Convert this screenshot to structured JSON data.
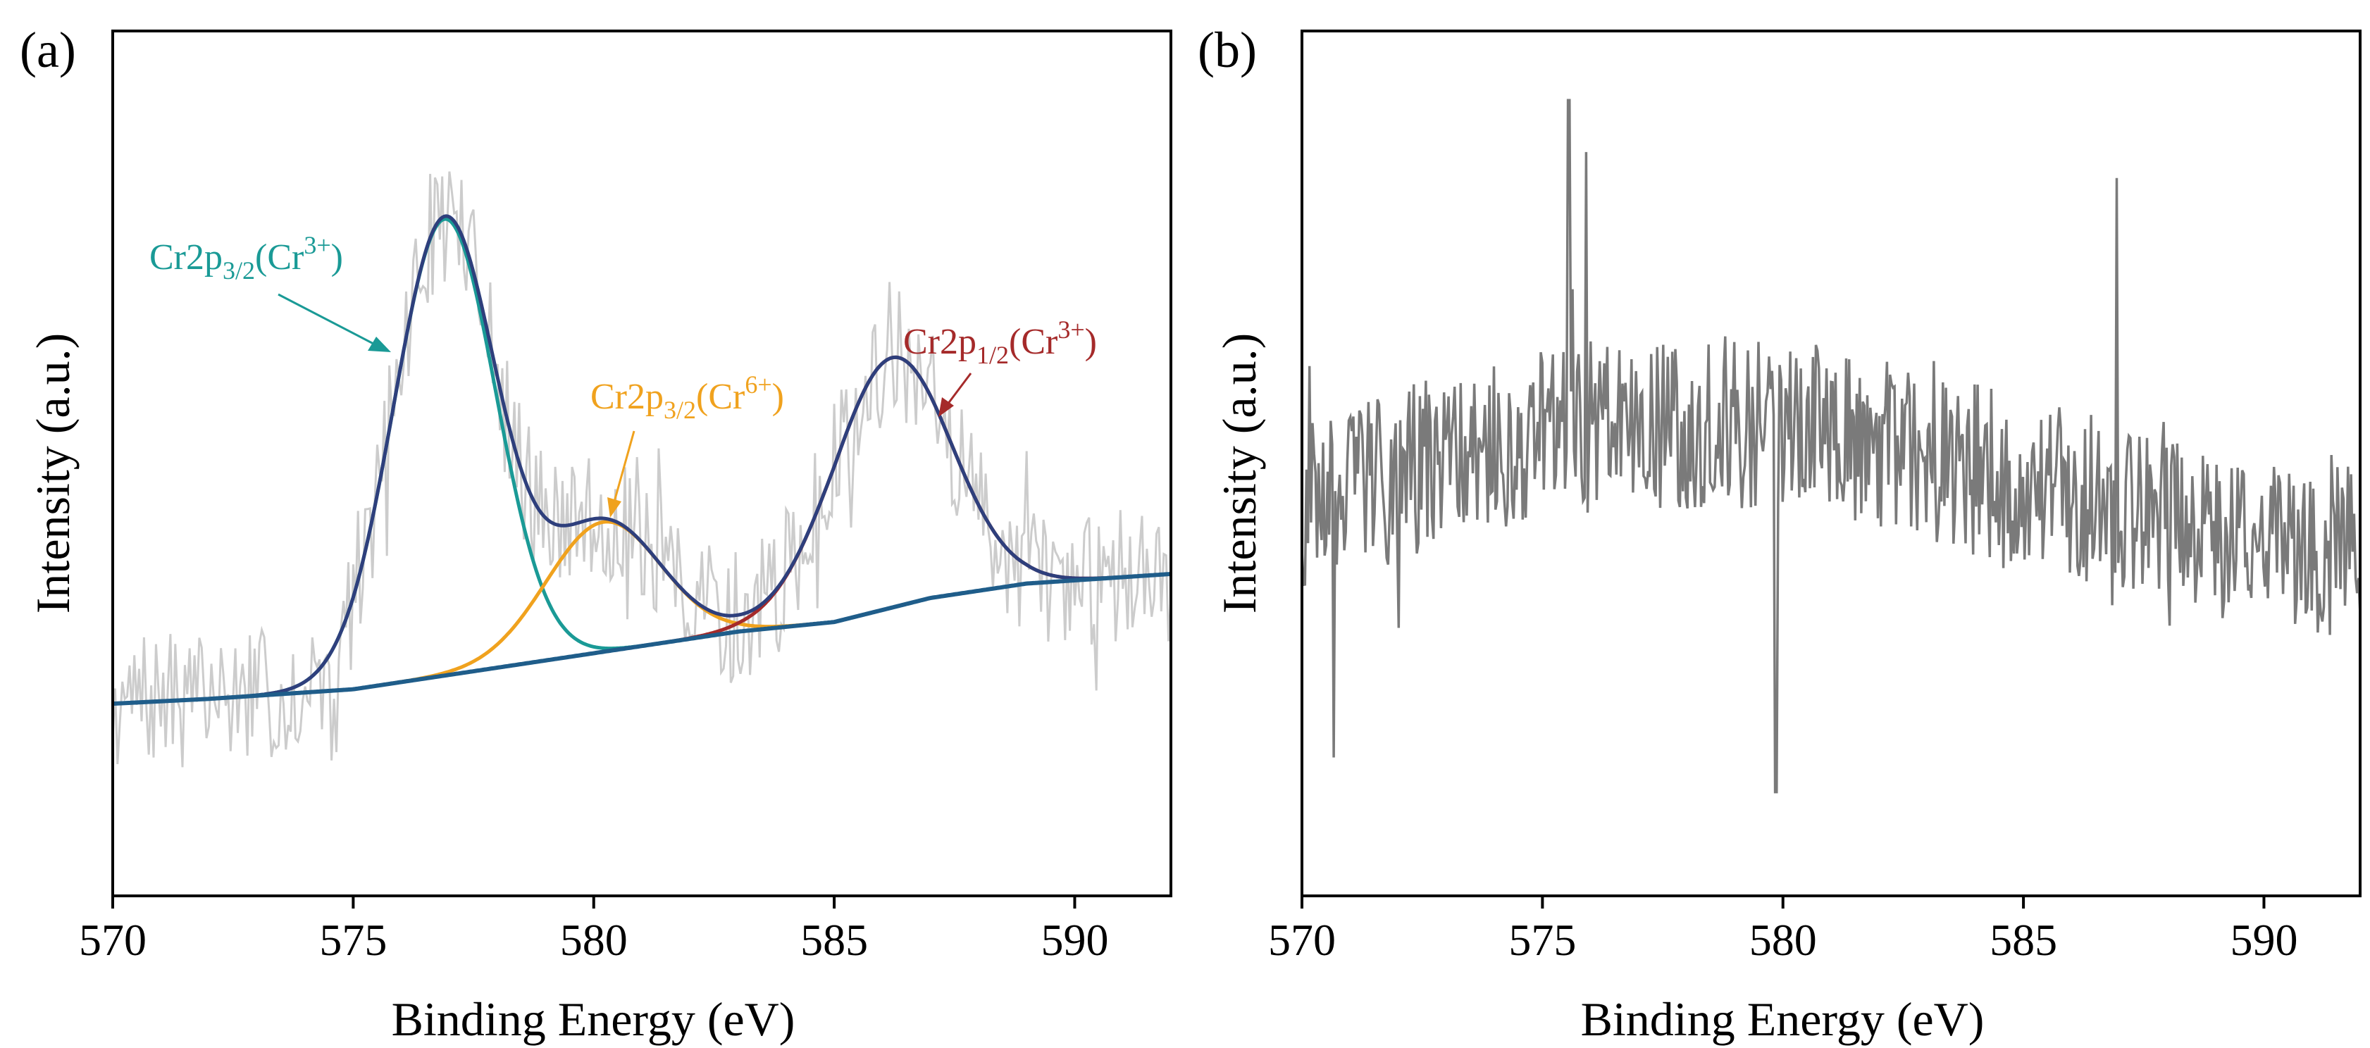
{
  "chart_data": [
    {
      "panel_label": "(a)",
      "type": "line",
      "xlabel": "Binding Energy (eV)",
      "ylabel": "Intensity (a.u.)",
      "xlim": [
        570,
        592
      ],
      "ylim": [
        -0.4,
        1.4
      ],
      "x_ticks": [
        570,
        575,
        580,
        585,
        590
      ],
      "y_ticks_shown": false,
      "colors": {
        "raw": "#cccccc",
        "envelope": "#2e3f7c",
        "cr3_2p32": "#1a9a96",
        "cr6_2p32": "#f0a21e",
        "cr3_2p12": "#a52a2a",
        "background": "#1f5d8a"
      },
      "background": {
        "x": [
          570,
          572,
          575,
          577,
          579,
          581,
          583,
          585,
          587,
          589,
          592
        ],
        "y": [
          0.0,
          0.01,
          0.03,
          0.06,
          0.09,
          0.12,
          0.15,
          0.17,
          0.22,
          0.25,
          0.27
        ]
      },
      "peaks": [
        {
          "label": "Cr2p3/2(Cr3+)",
          "center": 576.9,
          "height": 0.95,
          "fwhm": 2.5
        },
        {
          "label": "Cr2p3/2(Cr6+)",
          "center": 580.2,
          "height": 0.27,
          "fwhm": 2.8
        },
        {
          "label": "Cr2p1/2(Cr3+)",
          "center": 586.2,
          "height": 0.52,
          "fwhm": 2.9
        }
      ],
      "noise_amplitude": 0.14,
      "annotations": [
        {
          "main": "Cr2p",
          "sub": "3/2",
          "open": "(Cr",
          "sup": "3+",
          "close": ")"
        },
        {
          "main": "Cr2p",
          "sub": "3/2",
          "open": "(Cr",
          "sup": "6+",
          "close": ")"
        },
        {
          "main": "Cr2p",
          "sub": "1/2",
          "open": "(Cr",
          "sup": "3+",
          "close": ")"
        }
      ]
    },
    {
      "panel_label": "(b)",
      "type": "line",
      "xlabel": "Binding Energy (eV)",
      "ylabel": "Intensity (a.u.)",
      "xlim": [
        570,
        592
      ],
      "ylim": [
        0,
        1
      ],
      "x_ticks": [
        570,
        575,
        580,
        585,
        590
      ],
      "y_ticks_shown": false,
      "color": "#7a7a7a",
      "baseline": {
        "x": [
          570,
          575,
          580,
          585,
          590,
          592
        ],
        "y": [
          0.45,
          0.54,
          0.55,
          0.48,
          0.4,
          0.4
        ]
      },
      "noise_amplitude": 0.1,
      "spikes": [
        {
          "x": 575.55,
          "y": 0.92
        },
        {
          "x": 575.9,
          "y": 0.86
        },
        {
          "x": 586.95,
          "y": 0.83
        },
        {
          "x": 579.85,
          "y": 0.12
        },
        {
          "x": 570.65,
          "y": 0.16
        }
      ]
    }
  ]
}
